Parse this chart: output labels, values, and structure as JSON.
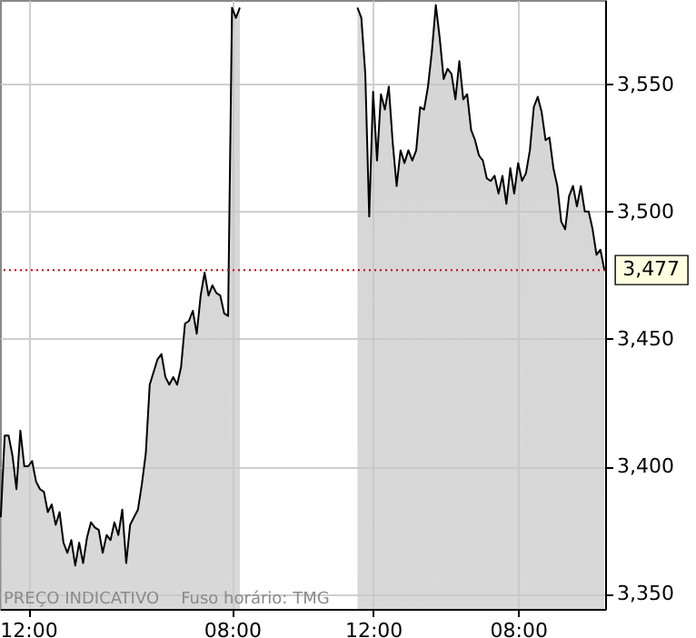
{
  "chart_data": {
    "type": "area",
    "categories": [
      null,
      null,
      null,
      null,
      null,
      null,
      null,
      "12:00",
      null,
      null,
      null,
      null,
      null,
      null,
      null,
      null,
      null,
      null,
      null,
      null,
      null,
      null,
      null,
      null,
      null,
      null,
      null,
      null,
      null,
      null,
      null,
      null,
      null,
      null,
      null,
      null,
      null,
      null,
      null,
      null,
      null,
      null,
      null,
      null,
      null,
      null,
      null,
      null,
      null,
      null,
      null,
      null,
      null,
      null,
      null,
      null,
      null,
      null,
      null,
      "08:00",
      null,
      null,
      null,
      null,
      null,
      null,
      null,
      null,
      null,
      null,
      null,
      null,
      null,
      null,
      null,
      null,
      null,
      null,
      null,
      null,
      null,
      null,
      null,
      null,
      null,
      null,
      null,
      null,
      null,
      null,
      null,
      null,
      null,
      null,
      null,
      "12:00",
      null,
      null,
      null,
      null,
      null,
      null,
      null,
      null,
      null,
      null,
      null,
      null,
      null,
      null,
      null,
      null,
      null,
      null,
      null,
      null,
      null,
      null,
      null,
      null,
      null,
      null,
      null,
      null,
      null,
      null,
      null,
      null,
      null,
      null,
      null,
      null,
      "08:00",
      null,
      null,
      null,
      null,
      null,
      null,
      null,
      null,
      null,
      null,
      null,
      null,
      null,
      null,
      null,
      null,
      null,
      null,
      null,
      null,
      null,
      null
    ],
    "series": [
      {
        "color": "#c4c4c4",
        "values": [
          3380,
          3412,
          3412,
          3404,
          3391,
          3414,
          3400,
          3400,
          3402,
          3394,
          3391,
          3390,
          3382,
          3385,
          3377,
          3382,
          3370,
          3366,
          3371,
          3361,
          3370,
          3362,
          3372,
          3378,
          3376,
          3375,
          3366,
          3373,
          3371,
          3378,
          3373,
          3383,
          3362,
          3377,
          3380,
          3383,
          3393,
          3405,
          3432,
          3437,
          3442,
          3444,
          3435,
          3432,
          3435,
          3432,
          3439,
          3456,
          3457,
          3461,
          3452,
          3467,
          3476,
          3467,
          3471,
          3468,
          3467,
          3460,
          3459,
          3580,
          3576,
          3580,
          null,
          null,
          null,
          null,
          null,
          null,
          null,
          null,
          null,
          null,
          null,
          null,
          null,
          null,
          null,
          null,
          null,
          null,
          null,
          null,
          null,
          null,
          null,
          null,
          null,
          null,
          null,
          null,
          null,
          3580,
          3576,
          3554,
          3498,
          3547,
          3520,
          3546,
          3540,
          3549,
          3527,
          3510,
          3524,
          3519,
          3524,
          3520,
          3524,
          3541,
          3540,
          3549,
          3563,
          3581,
          3568,
          3552,
          3556,
          3554,
          3544,
          3559,
          3544,
          3546,
          3532,
          3528,
          3522,
          3520,
          3513,
          3512,
          3514,
          3507,
          3514,
          3503,
          3517,
          3507,
          3519,
          3512,
          3515,
          3524,
          3541,
          3545,
          3539,
          3528,
          3529,
          3517,
          3510,
          3496,
          3493,
          3506,
          3510,
          3502,
          3510,
          3500,
          3500,
          3493,
          3483,
          3485,
          3477
        ]
      }
    ],
    "ylim": [
      3344,
      3583
    ],
    "yticks": [
      {
        "value": 3350,
        "label": "3,350"
      },
      {
        "value": 3400,
        "label": "3,400"
      },
      {
        "value": 3450,
        "label": "3,450"
      },
      {
        "value": 3500,
        "label": "3,500"
      },
      {
        "value": 3550,
        "label": "3,550"
      }
    ],
    "grid": true,
    "ref_lines": [
      {
        "axis": "y",
        "value": 3477,
        "label": "3,477",
        "color": "#cc0000",
        "line_style": "dotted"
      }
    ],
    "annotations": [
      "PREÇO INDICATIVO",
      "Fuso horário: TMG"
    ]
  }
}
